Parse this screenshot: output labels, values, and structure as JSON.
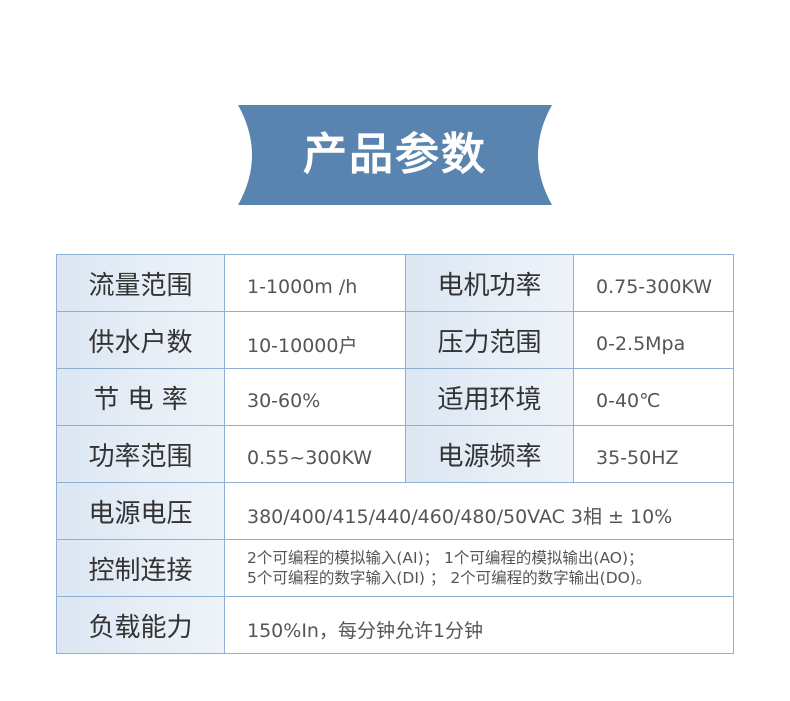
{
  "title": "产品参数",
  "colors": {
    "banner": "#5a84b0",
    "border": "#8fb0d3",
    "label_bg": "#dce7f3"
  },
  "rows": [
    {
      "cells": [
        {
          "label": "流量范围",
          "value": "1-1000m /h"
        },
        {
          "label": "电机功率",
          "value": "0.75-300KW"
        }
      ]
    },
    {
      "cells": [
        {
          "label": "供水户数",
          "value": "10-10000户"
        },
        {
          "label": "压力范围",
          "value": "0-2.5Mpa"
        }
      ]
    },
    {
      "cells": [
        {
          "label": "节 电 率",
          "value": "30-60%"
        },
        {
          "label": "适用环境",
          "value": "0-40℃"
        }
      ]
    },
    {
      "cells": [
        {
          "label": "功率范围",
          "value": "0.55~300KW"
        },
        {
          "label": "电源频率",
          "value": "35-50HZ"
        }
      ]
    }
  ],
  "wide_rows": [
    {
      "label": "电源电压",
      "lines": [
        "380/400/415/440/460/480/50VAC 3相 ± 10%"
      ]
    },
    {
      "label": "控制连接",
      "lines": [
        "2个可编程的模拟输入(AI)； 1个可编程的模拟输出(AO)；",
        "5个可编程的数字输入(DI) ； 2个可编程的数字输出(DO)。"
      ]
    },
    {
      "label": "负载能力",
      "lines": [
        "150%In，每分钟允许1分钟"
      ]
    }
  ]
}
